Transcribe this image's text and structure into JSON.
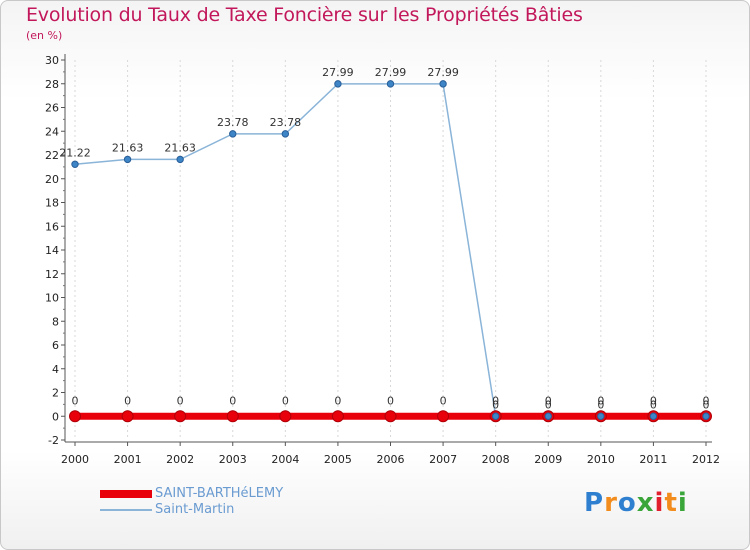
{
  "chart_data": {
    "type": "line",
    "title": "Evolution du Taux de Taxe Foncière sur les Propriétés Bâties",
    "subtitle": "(en %)",
    "categories": [
      "2000",
      "2001",
      "2002",
      "2003",
      "2004",
      "2005",
      "2006",
      "2007",
      "2008",
      "2009",
      "2010",
      "2011",
      "2012"
    ],
    "ylim": [
      -2,
      30
    ],
    "yticks": [
      "-2",
      "0",
      "2",
      "4",
      "6",
      "8",
      "10",
      "12",
      "14",
      "16",
      "18",
      "20",
      "22",
      "24",
      "26",
      "28",
      "30"
    ],
    "series": [
      {
        "name": "SAINT-BARTHéLEMY",
        "color": "#e8000b",
        "values": [
          0,
          0,
          0,
          0,
          0,
          0,
          0,
          0,
          0,
          0,
          0,
          0,
          0
        ],
        "labels": [
          "0",
          "0",
          "0",
          "0",
          "0",
          "0",
          "0",
          "0",
          "0",
          "0",
          "0",
          "0",
          "0"
        ]
      },
      {
        "name": "Saint-Martin",
        "color": "#8ab4d8",
        "values": [
          21.22,
          21.63,
          21.63,
          23.78,
          23.78,
          27.99,
          27.99,
          27.99,
          0,
          0,
          0,
          0,
          0
        ],
        "labels": [
          "21.22",
          "21.63",
          "21.63",
          "23.78",
          "23.78",
          "27.99",
          "27.99",
          "27.99",
          "0",
          "0",
          "0",
          "0",
          "0"
        ]
      }
    ]
  },
  "logo": {
    "letters": [
      "P",
      "r",
      "o",
      "x",
      "i",
      "t",
      "i"
    ],
    "colors": [
      "#2e7fcf",
      "#f28c1c",
      "#2e7fcf",
      "#3aa63a",
      "#e2202d",
      "#f28c1c",
      "#3aa63a"
    ]
  }
}
